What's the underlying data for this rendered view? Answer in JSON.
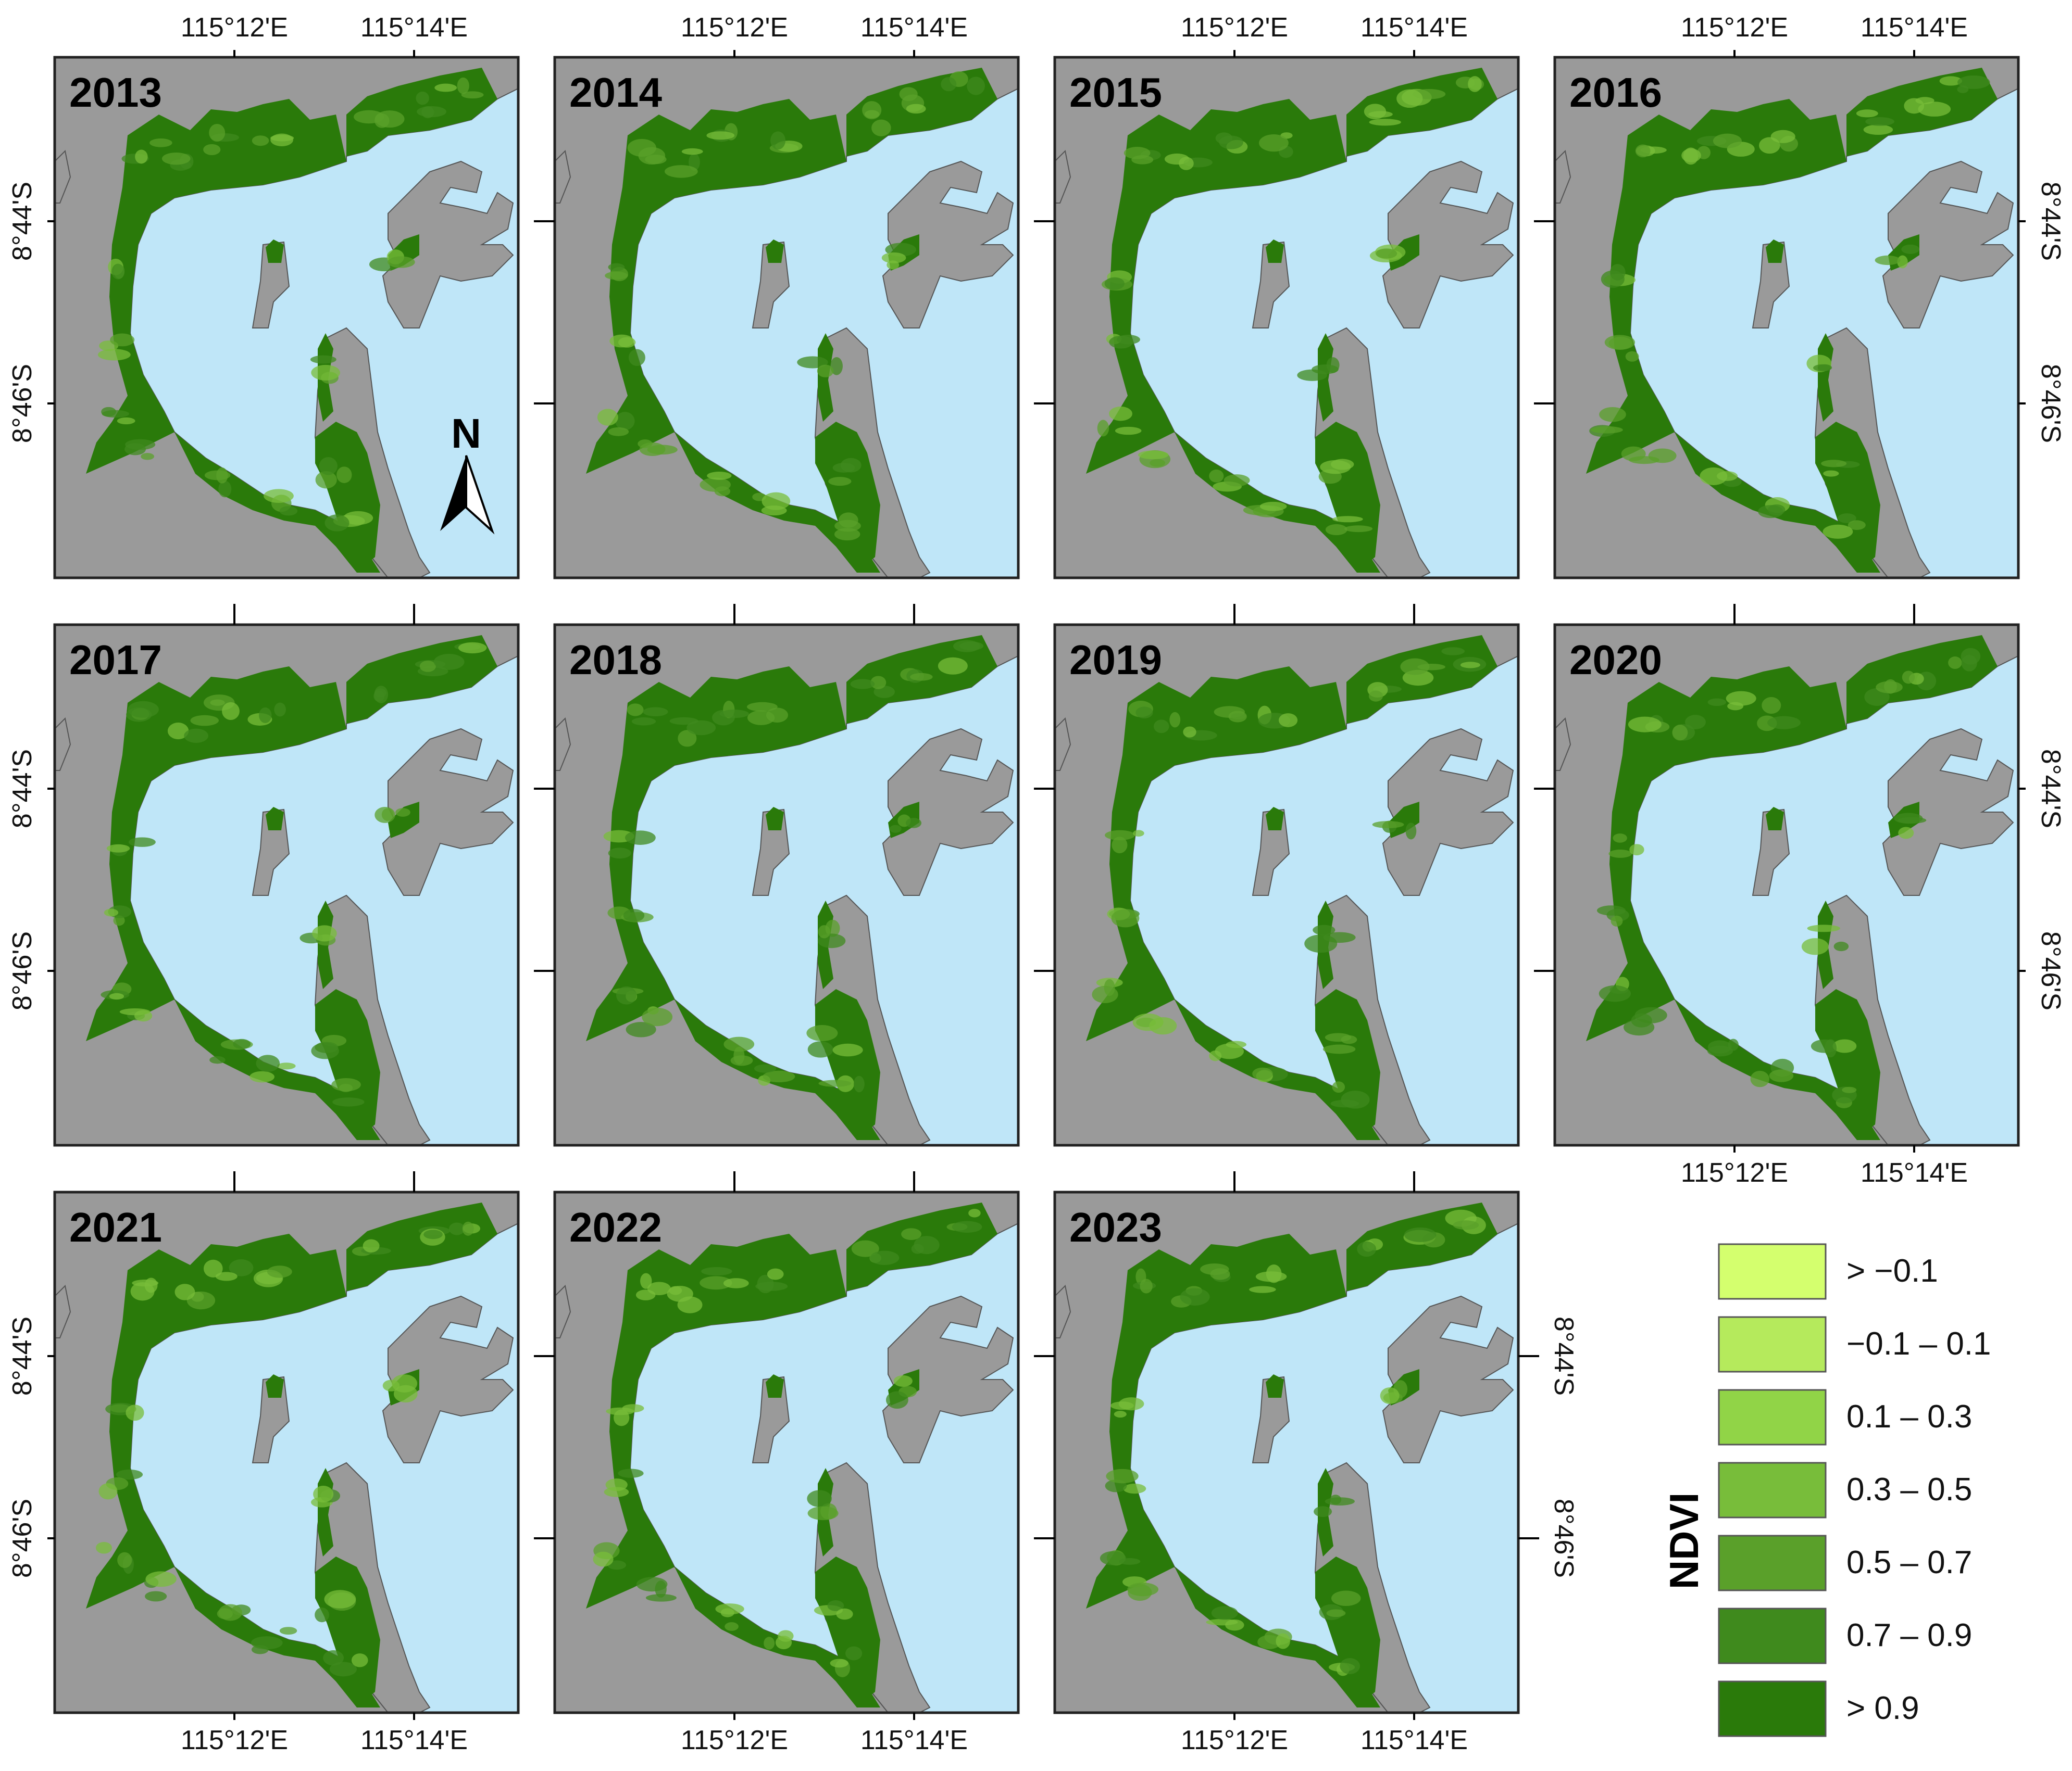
{
  "colors": {
    "land": "#9a9a9a",
    "water": "#bfe6f8",
    "frame": "#222222",
    "ndvi": [
      "#d4ff6e",
      "#b5ea5c",
      "#91d447",
      "#78bd3a",
      "#5aa02a",
      "#3f8a1d",
      "#2a7a0a"
    ]
  },
  "panels": [
    {
      "year": "2013",
      "show_north_arrow": true
    },
    {
      "year": "2014",
      "show_north_arrow": false
    },
    {
      "year": "2015",
      "show_north_arrow": false
    },
    {
      "year": "2016",
      "show_north_arrow": false
    },
    {
      "year": "2017",
      "show_north_arrow": false
    },
    {
      "year": "2018",
      "show_north_arrow": false
    },
    {
      "year": "2019",
      "show_north_arrow": false
    },
    {
      "year": "2020",
      "show_north_arrow": false
    },
    {
      "year": "2021",
      "show_north_arrow": false
    },
    {
      "year": "2022",
      "show_north_arrow": false
    },
    {
      "year": "2023",
      "show_north_arrow": false
    }
  ],
  "north_arrow": {
    "label": "N",
    "icon": "north-arrow-icon"
  },
  "longitude_labels": [
    "115°12'E",
    "115°14'E"
  ],
  "latitude_labels": [
    "8°44'S",
    "8°46'S"
  ],
  "legend": {
    "title": "NDVI",
    "classes": [
      "> −0.1",
      "−0.1 – 0.1",
      "0.1 – 0.3",
      "0.3 – 0.5",
      "0.5 – 0.7",
      "0.7 – 0.9",
      "> 0.9"
    ]
  }
}
